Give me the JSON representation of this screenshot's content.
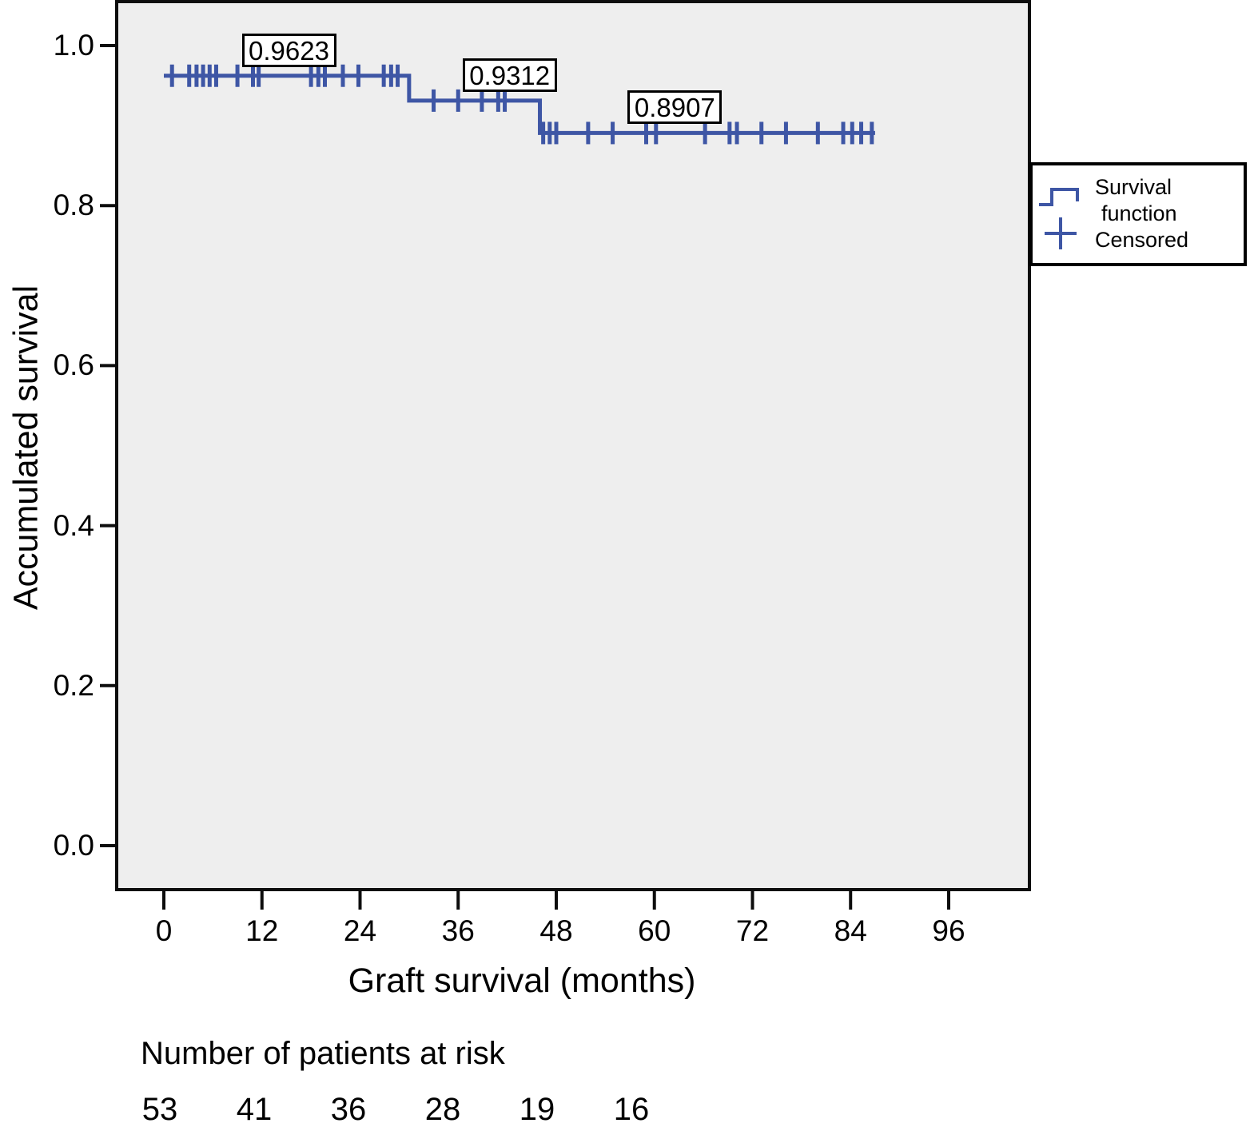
{
  "colors": {
    "curve": "#3E56A5",
    "plot_bg": "#EEEEEE",
    "frame": "#0D0D0D",
    "text": "#000000",
    "annotation_bg": "#FFFFFF"
  },
  "chart_data": {
    "type": "line",
    "subtype": "kaplan-meier-step",
    "title": "",
    "xlabel": "Graft survival (months)",
    "ylabel": "Accumulated survival",
    "xlim": [
      0,
      105
    ],
    "ylim": [
      -0.05,
      1.05
    ],
    "grid": false,
    "legend_position": "right",
    "x_ticks": [
      0,
      12,
      24,
      36,
      48,
      60,
      72,
      84,
      96
    ],
    "y_ticks": [
      {
        "label": "1.0",
        "value": 1.0
      },
      {
        "label": "0.8",
        "value": 0.8
      },
      {
        "label": "0.6",
        "value": 0.6
      },
      {
        "label": "0.4",
        "value": 0.4
      },
      {
        "label": "0.2",
        "value": 0.2
      },
      {
        "label": "0.0",
        "value": 0.0
      }
    ],
    "series": [
      {
        "name": "Survival function",
        "points": [
          [
            0,
            0.9623
          ],
          [
            30,
            0.9623
          ],
          [
            30,
            0.9312
          ],
          [
            46,
            0.9312
          ],
          [
            46,
            0.8907
          ],
          [
            87,
            0.8907
          ]
        ]
      }
    ],
    "censored_marks": [
      [
        1.0,
        0.9623
      ],
      [
        3.1,
        0.9623
      ],
      [
        4.0,
        0.9623
      ],
      [
        4.8,
        0.9623
      ],
      [
        5.6,
        0.9623
      ],
      [
        6.4,
        0.9623
      ],
      [
        9.0,
        0.9623
      ],
      [
        10.9,
        0.9623
      ],
      [
        11.6,
        0.9623
      ],
      [
        18.0,
        0.9623
      ],
      [
        18.9,
        0.9623
      ],
      [
        19.7,
        0.9623
      ],
      [
        21.9,
        0.9623
      ],
      [
        23.8,
        0.9623
      ],
      [
        26.9,
        0.9623
      ],
      [
        27.8,
        0.9623
      ],
      [
        28.6,
        0.9623
      ],
      [
        33.0,
        0.9312
      ],
      [
        36.0,
        0.9312
      ],
      [
        38.9,
        0.9312
      ],
      [
        40.9,
        0.9312
      ],
      [
        41.7,
        0.9312
      ],
      [
        46.4,
        0.8907
      ],
      [
        47.2,
        0.8907
      ],
      [
        48.0,
        0.8907
      ],
      [
        51.9,
        0.8907
      ],
      [
        54.9,
        0.8907
      ],
      [
        59.0,
        0.8907
      ],
      [
        60.2,
        0.8907
      ],
      [
        66.2,
        0.8907
      ],
      [
        69.2,
        0.8907
      ],
      [
        70.1,
        0.8907
      ],
      [
        73.1,
        0.8907
      ],
      [
        76.1,
        0.8907
      ],
      [
        80.0,
        0.8907
      ],
      [
        83.1,
        0.8907
      ],
      [
        84.2,
        0.8907
      ],
      [
        85.3,
        0.8907
      ],
      [
        86.6,
        0.8907
      ]
    ],
    "annotations": [
      {
        "label": "0.9623",
        "month": 15.3,
        "level": 0.9623
      },
      {
        "label": "0.9312",
        "month": 42.3,
        "level": 0.9312
      },
      {
        "label": "0.8907",
        "month": 62.5,
        "level": 0.8907
      }
    ],
    "legend": {
      "survival_line1": "Survival",
      "survival_line2": "function",
      "censored": "Censored"
    },
    "at_risk": {
      "header": "Number of patients at risk",
      "values": [
        53,
        41,
        36,
        28,
        19,
        16
      ]
    }
  }
}
